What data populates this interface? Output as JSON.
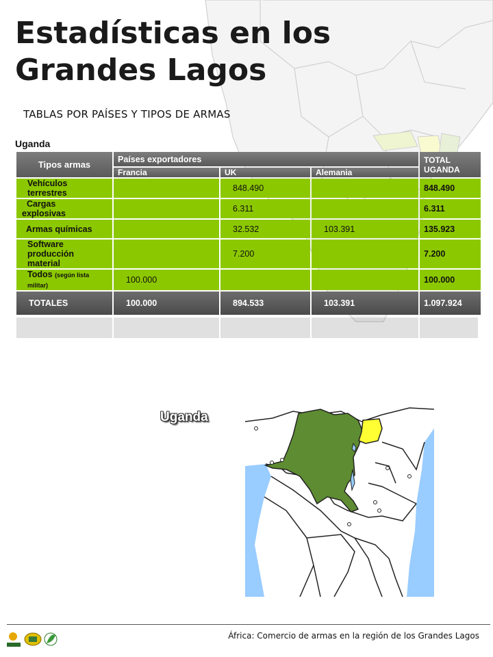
{
  "title_line1": "Estadísticas en los",
  "title_line2": "Grandes Lagos",
  "subtitle": "TABLAS POR PAÍSES Y TIPOS DE ARMAS",
  "table": {
    "country": "Uganda",
    "col_type": "Tipos armas",
    "col_group": "Países exportadores",
    "col_total": [
      "TOTAL",
      "UGANDA"
    ],
    "exporters": [
      "Francia",
      "UK",
      "Alemania"
    ],
    "rows": [
      {
        "type": [
          "Vehículos",
          "terrestres"
        ],
        "francia": "",
        "uk": "848.490",
        "alemania": "",
        "total": "848.490"
      },
      {
        "type": [
          "Cargas",
          "explosivas"
        ],
        "francia": "",
        "uk": "6.311",
        "alemania": "",
        "total": "6.311"
      },
      {
        "type": [
          "Armas químicas"
        ],
        "francia": "",
        "uk": "32.532",
        "alemania": "103.391",
        "total": "135.923"
      },
      {
        "type": [
          "Software",
          "producción",
          "material"
        ],
        "francia": "",
        "uk": "7.200",
        "alemania": "",
        "total": "7.200"
      },
      {
        "type": [
          "Todos"
        ],
        "type_note": "(según lista militar)",
        "francia": "100.000",
        "uk": "",
        "alemania": "",
        "total": "100.000"
      }
    ],
    "totals": {
      "label": "TOTALES",
      "francia": "100.000",
      "uk": "894.533",
      "alemania": "103.391",
      "total": "1.097.924"
    }
  },
  "map_label": "Uganda",
  "footer": "África: Comercio de armas en la región de los Grandes Lagos",
  "colors": {
    "green": "#8cc800",
    "highlight_country": "#ffff33",
    "drc": "#5e8c32",
    "water": "#99ccff"
  },
  "logos": [
    "CONFER",
    "MP",
    "leaf-logo"
  ]
}
